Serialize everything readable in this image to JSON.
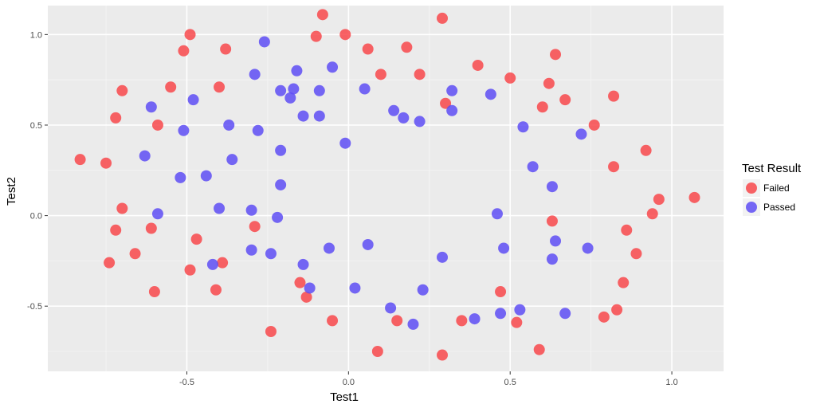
{
  "chart_data": {
    "type": "scatter",
    "xlabel": "Test1",
    "ylabel": "Test2",
    "xlim": [
      -0.93,
      1.16
    ],
    "ylim": [
      -0.86,
      1.16
    ],
    "x_ticks": [
      -0.5,
      0.0,
      0.5,
      1.0
    ],
    "x_tick_labels": [
      "-0.5",
      "0.0",
      "0.5",
      "1.0"
    ],
    "y_ticks": [
      -0.5,
      0.0,
      0.5,
      1.0
    ],
    "y_tick_labels": [
      "-0.5",
      "0.0",
      "0.5",
      "1.0"
    ],
    "grid": true,
    "background": "#ebebeb",
    "legend": {
      "title": "Test Result",
      "position": "right"
    },
    "series": [
      {
        "name": "Failed",
        "color": "#f8484b",
        "points": [
          [
            -0.83,
            0.31
          ],
          [
            -0.75,
            0.29
          ],
          [
            -0.74,
            -0.26
          ],
          [
            -0.72,
            -0.08
          ],
          [
            -0.72,
            0.54
          ],
          [
            -0.7,
            0.04
          ],
          [
            -0.7,
            0.69
          ],
          [
            -0.66,
            -0.21
          ],
          [
            -0.61,
            -0.07
          ],
          [
            -0.6,
            -0.42
          ],
          [
            -0.59,
            0.5
          ],
          [
            -0.55,
            0.71
          ],
          [
            -0.51,
            0.91
          ],
          [
            -0.49,
            1.0
          ],
          [
            -0.49,
            -0.3
          ],
          [
            -0.47,
            -0.13
          ],
          [
            -0.41,
            -0.41
          ],
          [
            -0.4,
            0.71
          ],
          [
            -0.39,
            -0.26
          ],
          [
            -0.38,
            0.92
          ],
          [
            -0.29,
            -0.06
          ],
          [
            -0.24,
            -0.64
          ],
          [
            -0.15,
            -0.37
          ],
          [
            -0.13,
            -0.45
          ],
          [
            -0.1,
            0.99
          ],
          [
            -0.08,
            1.11
          ],
          [
            -0.05,
            -0.58
          ],
          [
            -0.01,
            1.0
          ],
          [
            0.06,
            0.92
          ],
          [
            0.09,
            -0.75
          ],
          [
            0.1,
            0.78
          ],
          [
            0.15,
            -0.58
          ],
          [
            0.18,
            0.93
          ],
          [
            0.22,
            0.78
          ],
          [
            0.29,
            1.09
          ],
          [
            0.29,
            -0.77
          ],
          [
            0.3,
            0.62
          ],
          [
            0.35,
            -0.58
          ],
          [
            0.4,
            0.83
          ],
          [
            0.47,
            -0.42
          ],
          [
            0.5,
            0.76
          ],
          [
            0.52,
            -0.59
          ],
          [
            0.59,
            -0.74
          ],
          [
            0.6,
            0.6
          ],
          [
            0.62,
            0.73
          ],
          [
            0.63,
            -0.03
          ],
          [
            0.64,
            0.89
          ],
          [
            0.67,
            0.64
          ],
          [
            0.76,
            0.5
          ],
          [
            0.79,
            -0.56
          ],
          [
            0.82,
            0.27
          ],
          [
            0.82,
            0.66
          ],
          [
            0.83,
            -0.52
          ],
          [
            0.85,
            -0.37
          ],
          [
            0.86,
            -0.08
          ],
          [
            0.89,
            -0.21
          ],
          [
            0.92,
            0.36
          ],
          [
            0.94,
            0.01
          ],
          [
            0.96,
            0.09
          ],
          [
            1.07,
            0.1
          ]
        ]
      },
      {
        "name": "Passed",
        "color": "#5e4ef5",
        "points": [
          [
            -0.63,
            0.33
          ],
          [
            -0.61,
            0.6
          ],
          [
            -0.59,
            0.01
          ],
          [
            -0.52,
            0.21
          ],
          [
            -0.51,
            0.47
          ],
          [
            -0.48,
            0.64
          ],
          [
            -0.44,
            0.22
          ],
          [
            -0.42,
            -0.27
          ],
          [
            -0.4,
            0.04
          ],
          [
            -0.37,
            0.5
          ],
          [
            -0.36,
            0.31
          ],
          [
            -0.3,
            -0.19
          ],
          [
            -0.3,
            0.03
          ],
          [
            -0.29,
            0.78
          ],
          [
            -0.28,
            0.47
          ],
          [
            -0.26,
            0.96
          ],
          [
            -0.24,
            -0.21
          ],
          [
            -0.22,
            -0.01
          ],
          [
            -0.21,
            0.17
          ],
          [
            -0.21,
            0.36
          ],
          [
            -0.21,
            0.69
          ],
          [
            -0.18,
            0.65
          ],
          [
            -0.17,
            0.7
          ],
          [
            -0.16,
            0.8
          ],
          [
            -0.14,
            0.55
          ],
          [
            -0.14,
            -0.27
          ],
          [
            -0.12,
            -0.4
          ],
          [
            -0.09,
            0.55
          ],
          [
            -0.09,
            0.69
          ],
          [
            -0.06,
            -0.18
          ],
          [
            -0.05,
            0.82
          ],
          [
            -0.01,
            0.4
          ],
          [
            0.02,
            -0.4
          ],
          [
            0.05,
            0.7
          ],
          [
            0.06,
            -0.16
          ],
          [
            0.13,
            -0.51
          ],
          [
            0.14,
            0.58
          ],
          [
            0.17,
            0.54
          ],
          [
            0.2,
            -0.6
          ],
          [
            0.22,
            0.52
          ],
          [
            0.23,
            -0.41
          ],
          [
            0.29,
            -0.23
          ],
          [
            0.32,
            0.58
          ],
          [
            0.32,
            0.69
          ],
          [
            0.39,
            -0.57
          ],
          [
            0.44,
            0.67
          ],
          [
            0.46,
            0.01
          ],
          [
            0.47,
            -0.54
          ],
          [
            0.48,
            -0.18
          ],
          [
            0.53,
            -0.52
          ],
          [
            0.54,
            0.49
          ],
          [
            0.57,
            0.27
          ],
          [
            0.63,
            0.16
          ],
          [
            0.63,
            -0.24
          ],
          [
            0.64,
            -0.14
          ],
          [
            0.67,
            -0.54
          ],
          [
            0.72,
            0.45
          ],
          [
            0.74,
            -0.18
          ]
        ]
      }
    ]
  }
}
